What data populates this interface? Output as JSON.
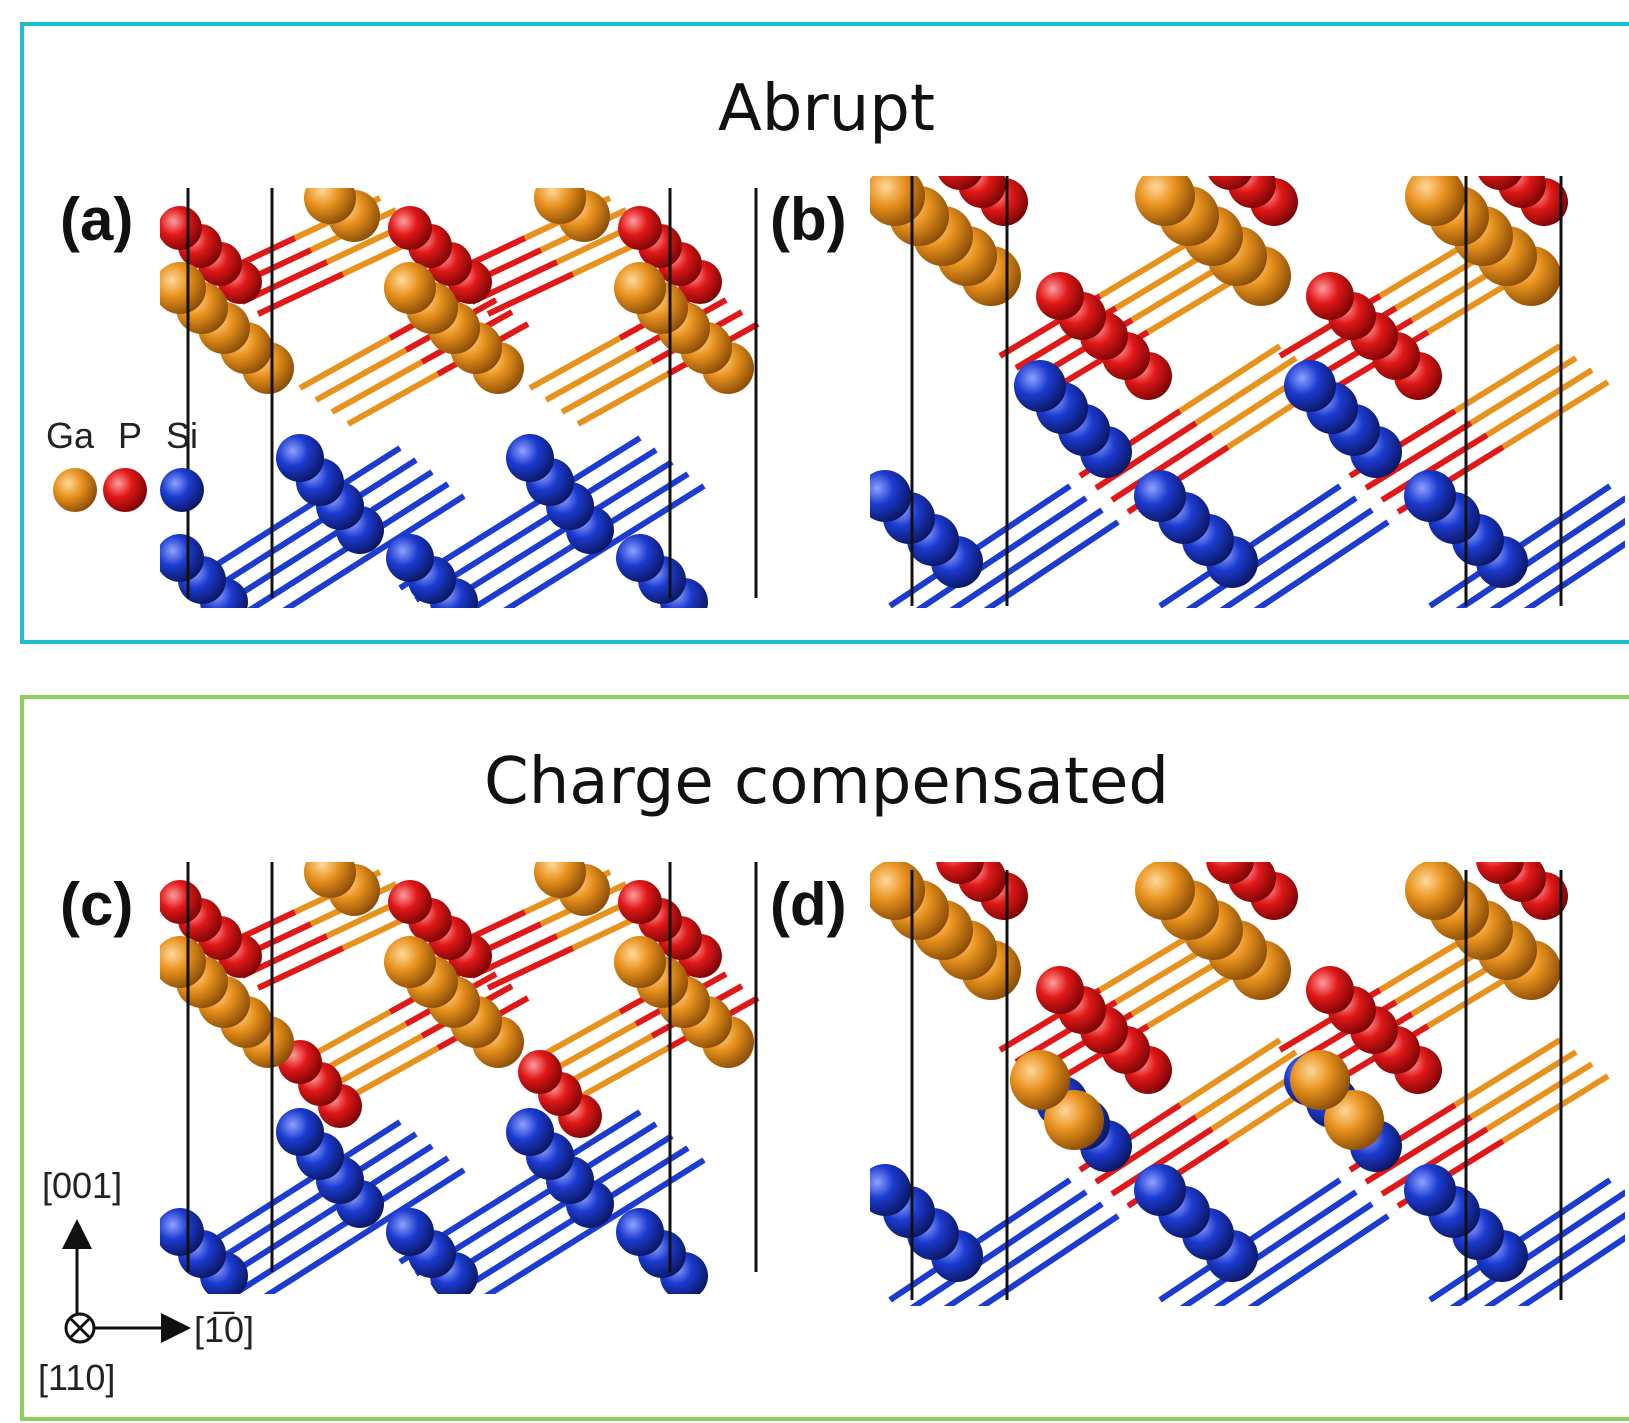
{
  "panels": {
    "top_title": "Abrupt",
    "bottom_title": "Charge compensated",
    "labels": {
      "a": "(a)",
      "b": "(b)",
      "c": "(c)",
      "d": "(d)"
    }
  },
  "legend": {
    "elements": [
      {
        "symbol": "Ga",
        "color": "#e8921e"
      },
      {
        "symbol": "P",
        "color": "#e01818"
      },
      {
        "symbol": "Si",
        "color": "#1c3bd0"
      }
    ]
  },
  "axes": {
    "vertical": "[001]",
    "horizontal": "[1̅0]",
    "into_page": "[110]"
  },
  "colors": {
    "top_border": "#1fbfc7",
    "bottom_border": "#8cd160",
    "ga": "#e8921e",
    "p": "#e01818",
    "si": "#1c3bd0"
  }
}
